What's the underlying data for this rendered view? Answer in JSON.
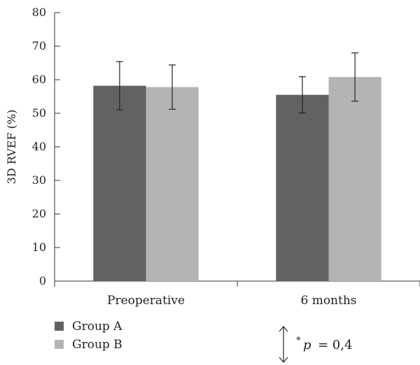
{
  "chart_data": {
    "type": "bar",
    "categories": [
      "Preoperative",
      "6 months"
    ],
    "series": [
      {
        "name": "Group A",
        "color": "#626262",
        "values": [
          58.2,
          55.5
        ],
        "error": [
          7.2,
          5.4
        ]
      },
      {
        "name": "Group B",
        "color": "#b3b4b6",
        "values": [
          57.8,
          60.8
        ],
        "error": [
          6.6,
          7.2
        ]
      }
    ],
    "xlabel": "",
    "ylabel": "3D RVEF (%)",
    "ylim": [
      0,
      80
    ],
    "yticks": [
      0,
      10,
      20,
      30,
      40,
      50,
      60,
      70,
      80
    ],
    "grid": false,
    "legend_position": "bottom-left",
    "annotation": {
      "star": "*",
      "symbol": "p",
      "text": "= 0,4"
    }
  }
}
